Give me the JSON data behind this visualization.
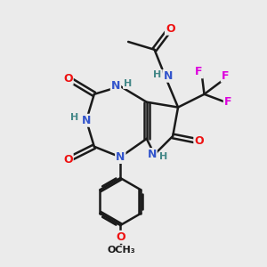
{
  "bg_color": "#ebebeb",
  "bond_color": "#1a1a1a",
  "bond_width": 1.8,
  "atom_colors": {
    "N": "#3355cc",
    "O": "#ee1111",
    "F": "#dd00dd",
    "H": "#448888",
    "C": "#1a1a1a"
  }
}
